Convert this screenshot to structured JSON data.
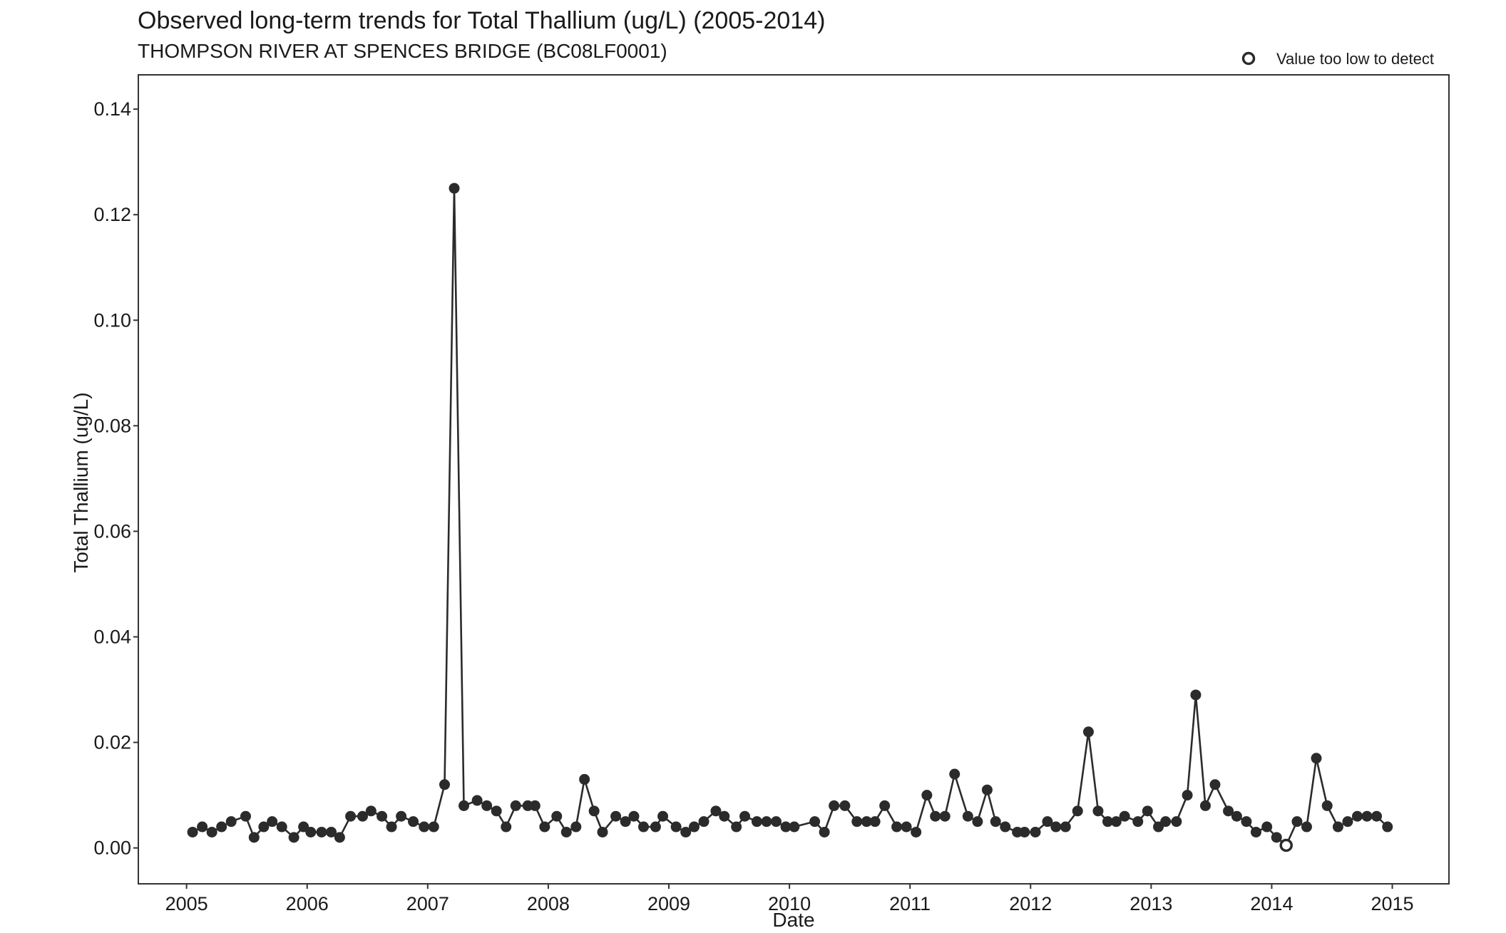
{
  "chart_data": {
    "type": "scatter",
    "title": "Observed long-term trends for Total Thallium (ug/L) (2005-2014)",
    "subtitle": "THOMPSON RIVER AT SPENCES BRIDGE (BC08LF0001)",
    "xlabel": "Date",
    "ylabel": "Total Thallium (ug/L)",
    "xlim": [
      2004.6,
      2015.47
    ],
    "ylim": [
      -0.0068,
      0.1465
    ],
    "x_ticks": [
      2005,
      2006,
      2007,
      2008,
      2009,
      2010,
      2011,
      2012,
      2013,
      2014,
      2015
    ],
    "x_tick_labels": [
      "2005",
      "2006",
      "2007",
      "2008",
      "2009",
      "2010",
      "2011",
      "2012",
      "2013",
      "2014",
      "2015"
    ],
    "y_ticks": [
      0,
      0.02,
      0.04,
      0.06,
      0.08,
      0.1,
      0.12,
      0.14
    ],
    "y_tick_labels": [
      "0.00",
      "0.02",
      "0.04",
      "0.06",
      "0.08",
      "0.10",
      "0.12",
      "0.14"
    ],
    "grid": false,
    "legend": {
      "position": "top-right",
      "entries": [
        {
          "label": "Value too low to detect",
          "marker": "hollow-circle"
        }
      ]
    },
    "colors": {
      "series": "#2b2b2b",
      "axis": "#333333",
      "background": "#ffffff"
    },
    "series": [
      {
        "points": [
          {
            "x": 2005.05,
            "y": 0.003
          },
          {
            "x": 2005.13,
            "y": 0.004
          },
          {
            "x": 2005.21,
            "y": 0.003
          },
          {
            "x": 2005.29,
            "y": 0.004
          },
          {
            "x": 2005.37,
            "y": 0.005
          },
          {
            "x": 2005.49,
            "y": 0.006
          },
          {
            "x": 2005.56,
            "y": 0.002
          },
          {
            "x": 2005.64,
            "y": 0.004
          },
          {
            "x": 2005.71,
            "y": 0.005
          },
          {
            "x": 2005.79,
            "y": 0.004
          },
          {
            "x": 2005.89,
            "y": 0.002
          },
          {
            "x": 2005.97,
            "y": 0.004
          },
          {
            "x": 2006.03,
            "y": 0.003
          },
          {
            "x": 2006.12,
            "y": 0.003
          },
          {
            "x": 2006.2,
            "y": 0.003
          },
          {
            "x": 2006.27,
            "y": 0.002
          },
          {
            "x": 2006.36,
            "y": 0.006
          },
          {
            "x": 2006.46,
            "y": 0.006
          },
          {
            "x": 2006.53,
            "y": 0.007
          },
          {
            "x": 2006.62,
            "y": 0.006
          },
          {
            "x": 2006.7,
            "y": 0.004
          },
          {
            "x": 2006.78,
            "y": 0.006
          },
          {
            "x": 2006.88,
            "y": 0.005
          },
          {
            "x": 2006.97,
            "y": 0.004
          },
          {
            "x": 2007.05,
            "y": 0.004
          },
          {
            "x": 2007.14,
            "y": 0.012
          },
          {
            "x": 2007.22,
            "y": 0.125
          },
          {
            "x": 2007.3,
            "y": 0.008
          },
          {
            "x": 2007.41,
            "y": 0.009
          },
          {
            "x": 2007.49,
            "y": 0.008
          },
          {
            "x": 2007.57,
            "y": 0.007
          },
          {
            "x": 2007.65,
            "y": 0.004
          },
          {
            "x": 2007.73,
            "y": 0.008
          },
          {
            "x": 2007.83,
            "y": 0.008
          },
          {
            "x": 2007.89,
            "y": 0.008
          },
          {
            "x": 2007.97,
            "y": 0.004
          },
          {
            "x": 2008.07,
            "y": 0.006
          },
          {
            "x": 2008.15,
            "y": 0.003
          },
          {
            "x": 2008.23,
            "y": 0.004
          },
          {
            "x": 2008.3,
            "y": 0.013
          },
          {
            "x": 2008.38,
            "y": 0.007
          },
          {
            "x": 2008.45,
            "y": 0.003
          },
          {
            "x": 2008.56,
            "y": 0.006
          },
          {
            "x": 2008.64,
            "y": 0.005
          },
          {
            "x": 2008.71,
            "y": 0.006
          },
          {
            "x": 2008.79,
            "y": 0.004
          },
          {
            "x": 2008.89,
            "y": 0.004
          },
          {
            "x": 2008.95,
            "y": 0.006
          },
          {
            "x": 2009.06,
            "y": 0.004
          },
          {
            "x": 2009.14,
            "y": 0.003
          },
          {
            "x": 2009.21,
            "y": 0.004
          },
          {
            "x": 2009.29,
            "y": 0.005
          },
          {
            "x": 2009.39,
            "y": 0.007
          },
          {
            "x": 2009.46,
            "y": 0.006
          },
          {
            "x": 2009.56,
            "y": 0.004
          },
          {
            "x": 2009.63,
            "y": 0.006
          },
          {
            "x": 2009.73,
            "y": 0.005
          },
          {
            "x": 2009.81,
            "y": 0.005
          },
          {
            "x": 2009.89,
            "y": 0.005
          },
          {
            "x": 2009.97,
            "y": 0.004
          },
          {
            "x": 2010.04,
            "y": 0.004
          },
          {
            "x": 2010.21,
            "y": 0.005
          },
          {
            "x": 2010.29,
            "y": 0.003
          },
          {
            "x": 2010.37,
            "y": 0.008
          },
          {
            "x": 2010.46,
            "y": 0.008
          },
          {
            "x": 2010.56,
            "y": 0.005
          },
          {
            "x": 2010.64,
            "y": 0.005
          },
          {
            "x": 2010.71,
            "y": 0.005
          },
          {
            "x": 2010.79,
            "y": 0.008
          },
          {
            "x": 2010.89,
            "y": 0.004
          },
          {
            "x": 2010.97,
            "y": 0.004
          },
          {
            "x": 2011.05,
            "y": 0.003
          },
          {
            "x": 2011.14,
            "y": 0.01
          },
          {
            "x": 2011.21,
            "y": 0.006
          },
          {
            "x": 2011.29,
            "y": 0.006
          },
          {
            "x": 2011.37,
            "y": 0.014
          },
          {
            "x": 2011.48,
            "y": 0.006
          },
          {
            "x": 2011.56,
            "y": 0.005
          },
          {
            "x": 2011.64,
            "y": 0.011
          },
          {
            "x": 2011.71,
            "y": 0.005
          },
          {
            "x": 2011.79,
            "y": 0.004
          },
          {
            "x": 2011.89,
            "y": 0.003
          },
          {
            "x": 2011.95,
            "y": 0.003
          },
          {
            "x": 2012.04,
            "y": 0.003
          },
          {
            "x": 2012.14,
            "y": 0.005
          },
          {
            "x": 2012.21,
            "y": 0.004
          },
          {
            "x": 2012.29,
            "y": 0.004
          },
          {
            "x": 2012.39,
            "y": 0.007
          },
          {
            "x": 2012.48,
            "y": 0.022
          },
          {
            "x": 2012.56,
            "y": 0.007
          },
          {
            "x": 2012.64,
            "y": 0.005
          },
          {
            "x": 2012.71,
            "y": 0.005
          },
          {
            "x": 2012.78,
            "y": 0.006
          },
          {
            "x": 2012.89,
            "y": 0.005
          },
          {
            "x": 2012.97,
            "y": 0.007
          },
          {
            "x": 2013.06,
            "y": 0.004
          },
          {
            "x": 2013.12,
            "y": 0.005
          },
          {
            "x": 2013.21,
            "y": 0.005
          },
          {
            "x": 2013.3,
            "y": 0.01
          },
          {
            "x": 2013.37,
            "y": 0.029
          },
          {
            "x": 2013.45,
            "y": 0.008
          },
          {
            "x": 2013.53,
            "y": 0.012
          },
          {
            "x": 2013.64,
            "y": 0.007
          },
          {
            "x": 2013.71,
            "y": 0.006
          },
          {
            "x": 2013.79,
            "y": 0.005
          },
          {
            "x": 2013.87,
            "y": 0.003
          },
          {
            "x": 2013.96,
            "y": 0.004
          },
          {
            "x": 2014.04,
            "y": 0.002
          },
          {
            "x": 2014.12,
            "y": 0.0005,
            "below_detection": true
          },
          {
            "x": 2014.21,
            "y": 0.005
          },
          {
            "x": 2014.29,
            "y": 0.004
          },
          {
            "x": 2014.37,
            "y": 0.017
          },
          {
            "x": 2014.46,
            "y": 0.008
          },
          {
            "x": 2014.55,
            "y": 0.004
          },
          {
            "x": 2014.63,
            "y": 0.005
          },
          {
            "x": 2014.71,
            "y": 0.006
          },
          {
            "x": 2014.79,
            "y": 0.006
          },
          {
            "x": 2014.87,
            "y": 0.006
          },
          {
            "x": 2014.96,
            "y": 0.004
          }
        ]
      }
    ]
  }
}
